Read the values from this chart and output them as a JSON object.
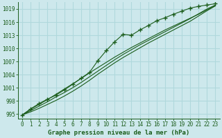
{
  "title": "Graphe pression niveau de la mer (hPa)",
  "bg_color": "#cde8ec",
  "grid_color": "#b0d8dc",
  "line_color": "#1a5c1a",
  "xlim": [
    -0.5,
    23.5
  ],
  "ylim": [
    994.0,
    1020.5
  ],
  "yticks": [
    995,
    998,
    1001,
    1004,
    1007,
    1010,
    1013,
    1016,
    1019
  ],
  "xticks": [
    0,
    1,
    2,
    3,
    4,
    5,
    6,
    7,
    8,
    9,
    10,
    11,
    12,
    13,
    14,
    15,
    16,
    17,
    18,
    19,
    20,
    21,
    22,
    23
  ],
  "series_smooth1": [
    994.8,
    995.5,
    996.3,
    997.2,
    998.1,
    999.1,
    1000.2,
    1001.4,
    1002.7,
    1004.1,
    1005.4,
    1006.7,
    1007.9,
    1009.0,
    1010.1,
    1011.2,
    1012.2,
    1013.2,
    1014.2,
    1015.2,
    1016.2,
    1017.4,
    1018.6,
    1019.7
  ],
  "series_smooth2": [
    994.8,
    995.8,
    996.8,
    997.8,
    998.9,
    999.9,
    1001.0,
    1002.2,
    1003.5,
    1004.8,
    1006.1,
    1007.4,
    1008.6,
    1009.7,
    1010.8,
    1011.8,
    1012.8,
    1013.8,
    1014.8,
    1015.8,
    1016.8,
    1017.9,
    1019.0,
    1019.9
  ],
  "series_smooth3": [
    994.8,
    996.1,
    997.2,
    998.3,
    999.5,
    1000.7,
    1001.9,
    1003.1,
    1004.4,
    1005.6,
    1006.8,
    1008.0,
    1009.1,
    1010.2,
    1011.2,
    1012.2,
    1013.2,
    1014.2,
    1015.1,
    1016.0,
    1016.9,
    1017.8,
    1018.8,
    1019.8
  ],
  "series_marker": [
    994.8,
    996.2,
    997.4,
    998.4,
    999.3,
    1000.5,
    1001.8,
    1003.2,
    1004.5,
    1007.2,
    1009.5,
    1011.5,
    1013.2,
    1013.0,
    1014.2,
    1015.2,
    1016.3,
    1017.0,
    1017.8,
    1018.5,
    1019.2,
    1019.6,
    1019.9,
    1020.2
  ],
  "font_size_label": 6.5,
  "font_size_tick": 5.5
}
